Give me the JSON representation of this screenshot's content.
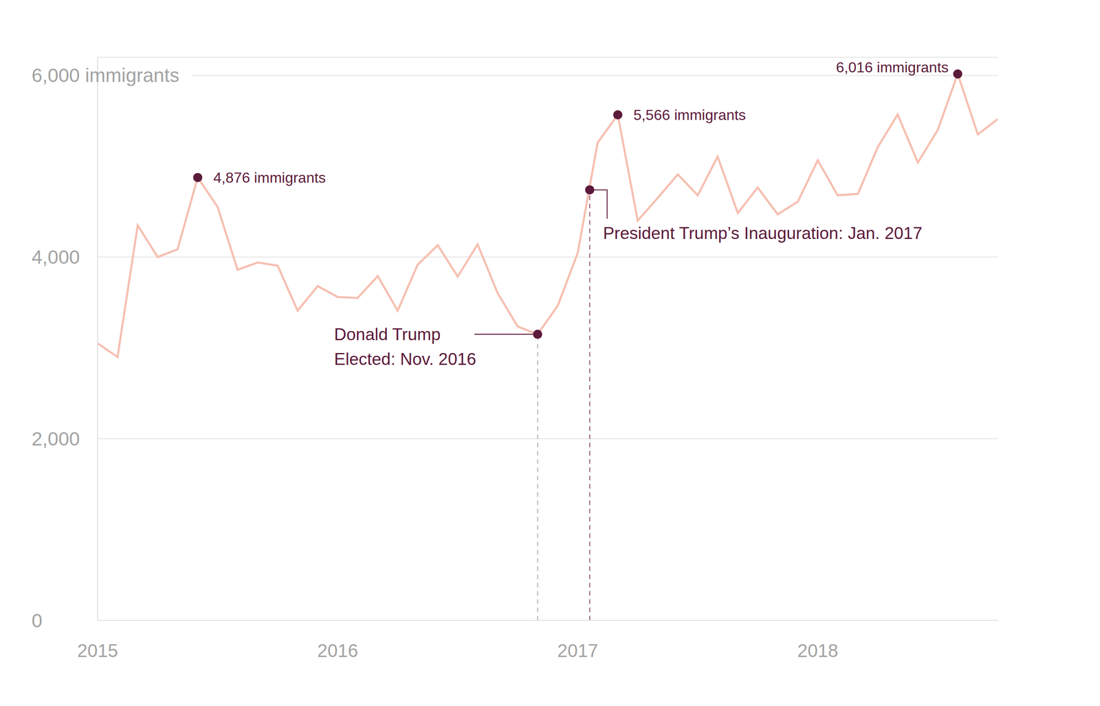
{
  "chart_data": {
    "type": "line",
    "x": [
      2015,
      2015.083,
      2015.167,
      2015.25,
      2015.333,
      2015.417,
      2015.5,
      2015.583,
      2015.667,
      2015.75,
      2015.833,
      2015.917,
      2016,
      2016.083,
      2016.167,
      2016.25,
      2016.333,
      2016.417,
      2016.5,
      2016.583,
      2016.667,
      2016.75,
      2016.833,
      2016.917,
      2017,
      2017.083,
      2017.167,
      2017.25,
      2017.333,
      2017.417,
      2017.5,
      2017.583,
      2017.667,
      2017.75,
      2017.833,
      2017.917,
      2018,
      2018.083,
      2018.167,
      2018.25,
      2018.333,
      2018.417,
      2018.5,
      2018.583,
      2018.667,
      2018.75
    ],
    "values": [
      3050,
      2900,
      4350,
      4000,
      4085,
      4876,
      4550,
      3860,
      3940,
      3905,
      3410,
      3680,
      3560,
      3550,
      3790,
      3410,
      3915,
      4130,
      3785,
      4140,
      3600,
      3235,
      3150,
      3465,
      4045,
      5260,
      5566,
      4400,
      4650,
      4910,
      4680,
      5105,
      4485,
      4765,
      4470,
      4610,
      5065,
      4680,
      4695,
      5210,
      5570,
      5040,
      5400,
      6016,
      5350,
      5520
    ],
    "color": "#f6bfb0",
    "xlim": [
      2015,
      2018.75
    ],
    "xticks": [
      2015,
      2016,
      2017,
      2018
    ],
    "ylim": [
      0,
      6200
    ],
    "yticks": [
      0,
      {
        "value": 2000,
        "label": "2,000"
      },
      {
        "value": 4000,
        "label": "4,000"
      },
      {
        "value": 6000,
        "label": "6,000 immigrants"
      }
    ],
    "grid": true,
    "annotations": [
      {
        "x": 2015.417,
        "y": 4876,
        "label": "4,876 immigrants"
      },
      {
        "x": 2017.167,
        "y": 5566,
        "label": "5,566 immigrants"
      },
      {
        "x": 2018.583,
        "y": 6016,
        "label": "6,016 immigrants"
      },
      {
        "x": 2016.833,
        "y": 3150,
        "label": "Donald Trump\nElected: Nov. 2016"
      },
      {
        "x": 2017.05,
        "y": 4740,
        "label": "President Trump’s Inauguration: Jan. 2017"
      }
    ]
  }
}
